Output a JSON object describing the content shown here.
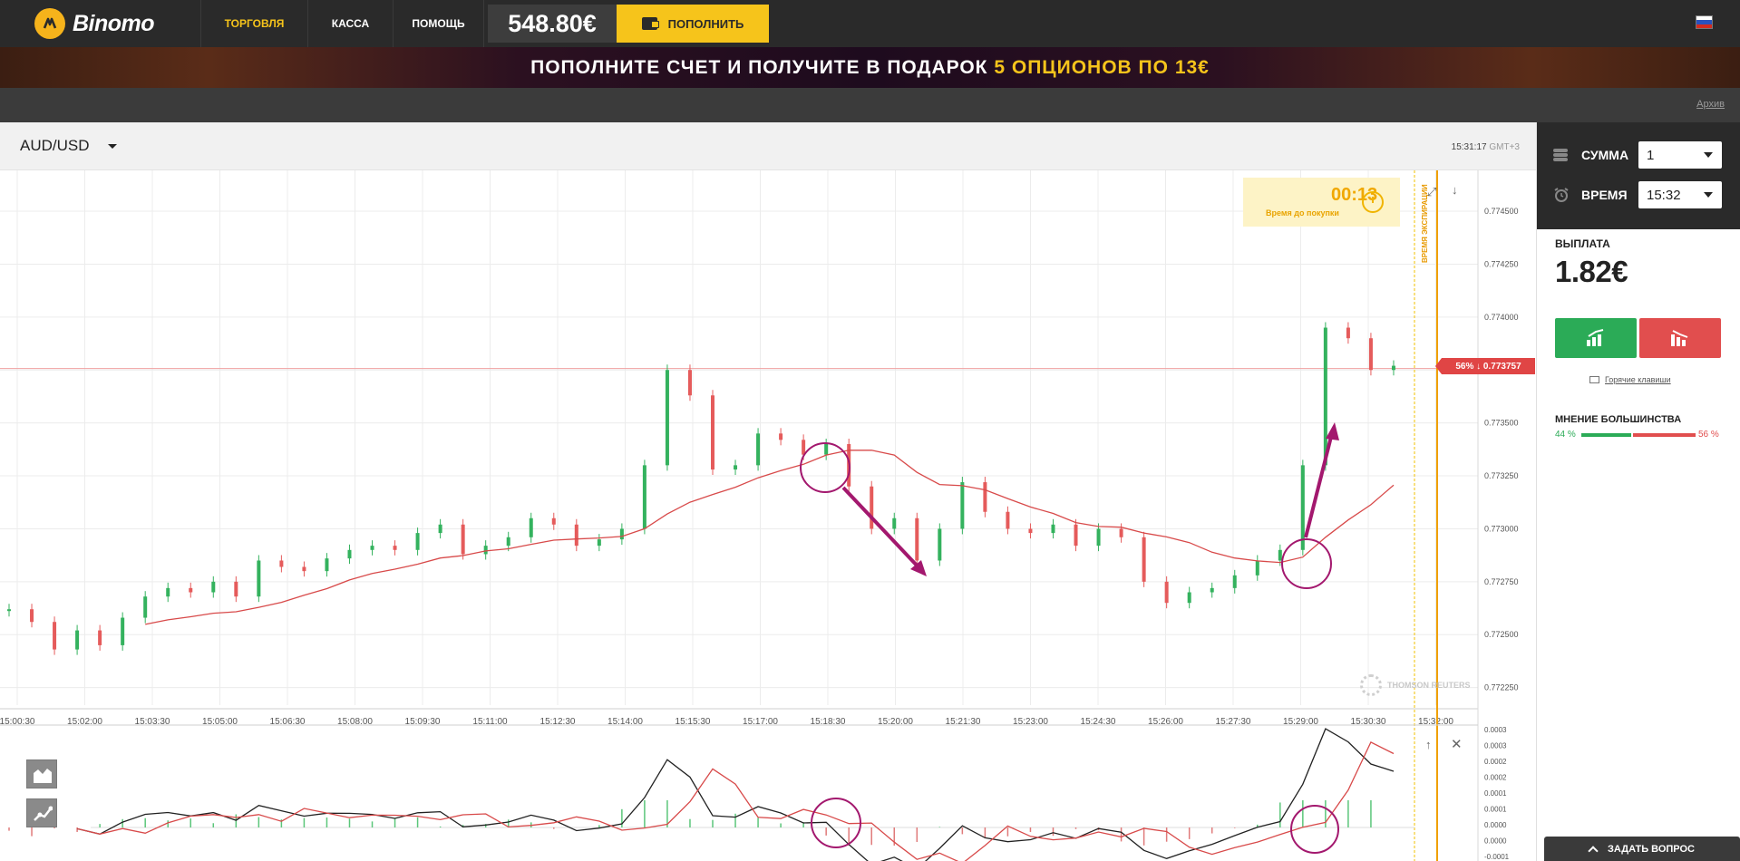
{
  "app": {
    "logo_text": "Binomo",
    "nav": [
      "ТОРГОВЛЯ",
      "КАССА",
      "ПОМОЩЬ"
    ],
    "balance": "548.80€",
    "deposit_label": "ПОПОЛНИТЬ",
    "flag": "russian-flag"
  },
  "banner": {
    "part1": "ПОПОЛНИТЕ СЧЕТ И ПОЛУЧИТЕ В ПОДАРОК ",
    "highlight1": "5 ОПЦИОНОВ ПО ",
    "highlight2": "13€"
  },
  "subbar": {
    "archive": "Архив"
  },
  "chart_header": {
    "pair": "AUD/USD",
    "time": "15:31:17",
    "tz": "GMT+3"
  },
  "chart_overlay": {
    "timer_value": "00:13",
    "timer_label": "Время до покупки",
    "expiry_label": "ВРЕМЯ ЭКСПИРАЦИИ",
    "current_price_tag": "56% ↓ 0.773757",
    "watermark": "THOMSON REUTERS"
  },
  "chart_data": {
    "type": "line",
    "x_ticks": [
      "15:00:30",
      "15:02:00",
      "15:03:30",
      "15:05:00",
      "15:06:30",
      "15:08:00",
      "15:09:30",
      "15:11:00",
      "15:12:30",
      "15:14:00",
      "15:15:30",
      "15:17:00",
      "15:18:30",
      "15:20:00",
      "15:21:30",
      "15:23:00",
      "15:24:30",
      "15:26:00",
      "15:27:30",
      "15:29:00",
      "15:30:30",
      "15:32:00"
    ],
    "y_ticks": [
      "0.774500",
      "0.774250",
      "0.774000",
      "0.773750",
      "0.773500",
      "0.773250",
      "0.773000",
      "0.772750",
      "0.772500",
      "0.772250"
    ],
    "indicator_y_ticks": [
      "0.0003",
      "0.0003",
      "0.0002",
      "0.0002",
      "0.0001",
      "0.0001",
      "0.0000",
      "0.0000",
      "-0.0001",
      "-0.0001"
    ],
    "current_price": 0.773757,
    "series": [
      {
        "name": "price",
        "kind": "candlestick",
        "color_up": "#34b25e",
        "color_down": "#e55b5b",
        "values": [
          0.77262,
          0.77256,
          0.77243,
          0.77252,
          0.77245,
          0.77258,
          0.77268,
          0.77272,
          0.7727,
          0.77275,
          0.77268,
          0.77285,
          0.77282,
          0.7728,
          0.77286,
          0.7729,
          0.77292,
          0.7729,
          0.77298,
          0.77302,
          0.77288,
          0.77292,
          0.77296,
          0.77305,
          0.77302,
          0.77292,
          0.77295,
          0.773,
          0.7733,
          0.77375,
          0.77363,
          0.77328,
          0.7733,
          0.77345,
          0.77342,
          0.77335,
          0.7734,
          0.7732,
          0.773,
          0.77305,
          0.77285,
          0.773,
          0.77322,
          0.77308,
          0.773,
          0.77298,
          0.77302,
          0.77292,
          0.773,
          0.77296,
          0.77275,
          0.77265,
          0.7727,
          0.77272,
          0.77278,
          0.77285,
          0.7729,
          0.7733,
          0.77395,
          0.7739,
          0.77375,
          0.77377
        ]
      },
      {
        "name": "moving-average",
        "kind": "line",
        "color": "#d84a4a"
      }
    ],
    "indicator": {
      "kind": "macd",
      "lines": [
        "#222222",
        "#d84a4a"
      ],
      "histogram_colors": [
        "#5bc67a",
        "#e07a7a"
      ]
    }
  },
  "panel": {
    "sum_label": "СУММА",
    "sum_value": "1",
    "time_label": "ВРЕМЯ",
    "time_value": "15:32",
    "payout_label": "ВЫПЛАТА",
    "payout_value": "1.82€",
    "hotkeys": "Горячие клавиши",
    "opinion_label": "МНЕНИЕ БОЛЬШИНСТВА",
    "opinion_up": "44 %",
    "opinion_down": "56 %",
    "opinion_up_pct": 44
  },
  "footer": {
    "ask": "ЗАДАТЬ ВОПРОС"
  }
}
